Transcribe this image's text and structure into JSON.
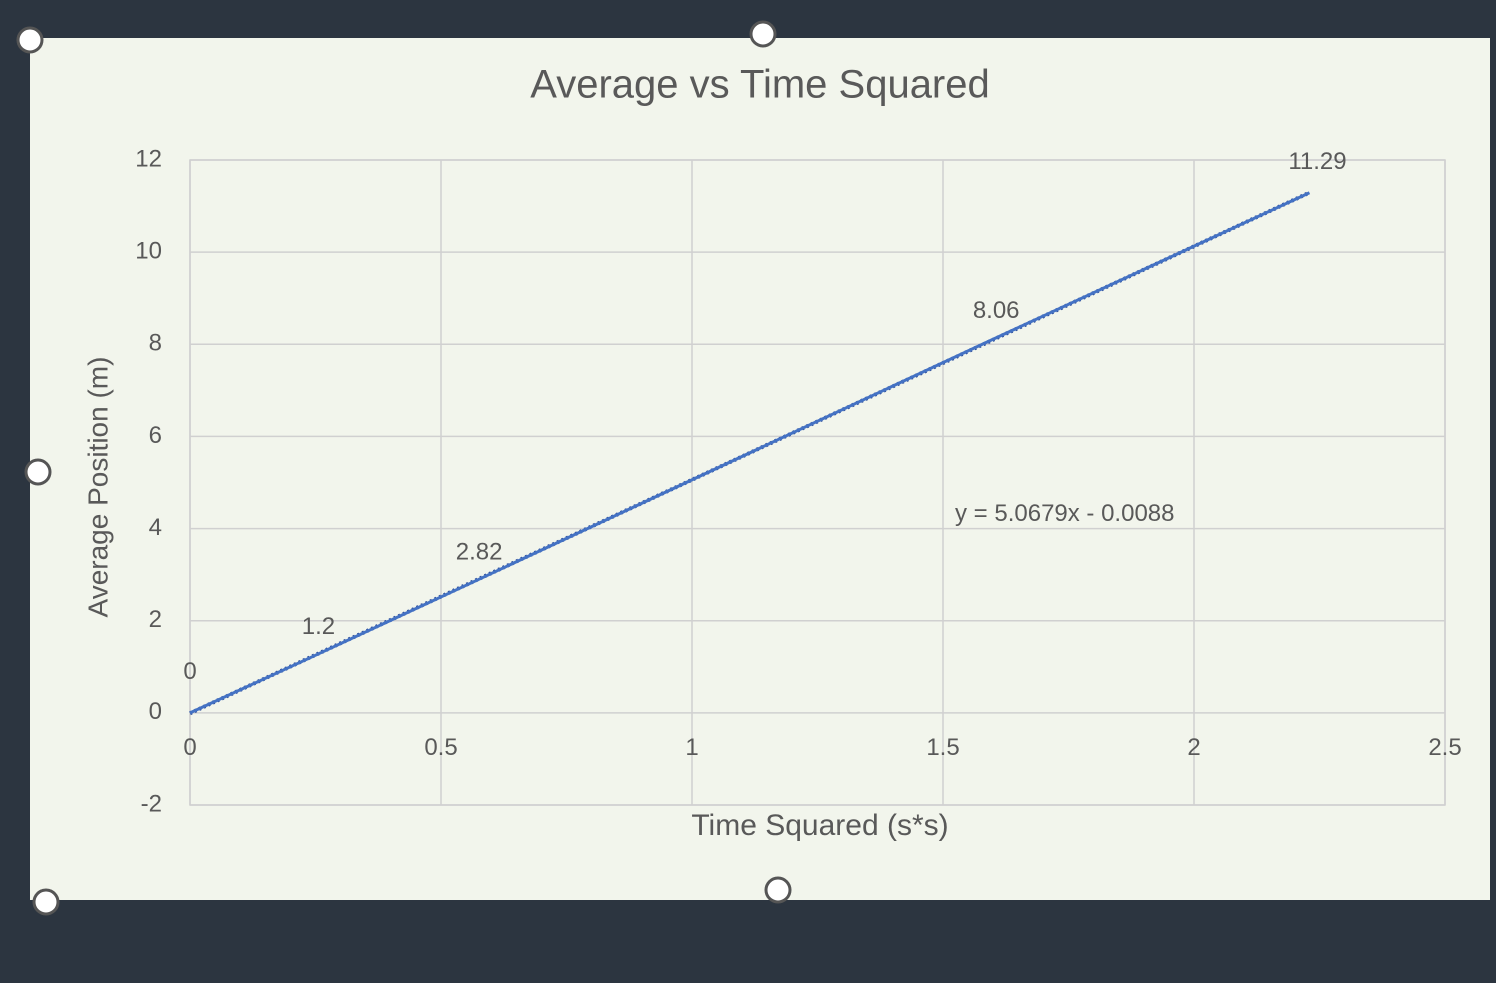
{
  "chart_data": {
    "type": "line",
    "title": "Average vs Time Squared",
    "x_label": "Time Squared (s*s)",
    "y_label": "Average Position (m)",
    "x": [
      0,
      0.24,
      0.56,
      1.59,
      2.23
    ],
    "values": [
      0,
      1.2,
      2.82,
      8.06,
      11.29
    ],
    "color": "#4472c4",
    "xlim": [
      0,
      2.5
    ],
    "xticks": [
      0,
      0.5,
      1,
      1.5,
      2,
      2.5
    ],
    "ylim": [
      -2,
      12
    ],
    "yticks": [
      -2,
      0,
      2,
      4,
      6,
      8,
      10,
      12
    ],
    "grid": true,
    "trendline": {
      "slope": 5.0679,
      "intercept": -0.0088,
      "label": "y = 5.0679x - 0.0088",
      "color": "#2f4f9a"
    }
  }
}
